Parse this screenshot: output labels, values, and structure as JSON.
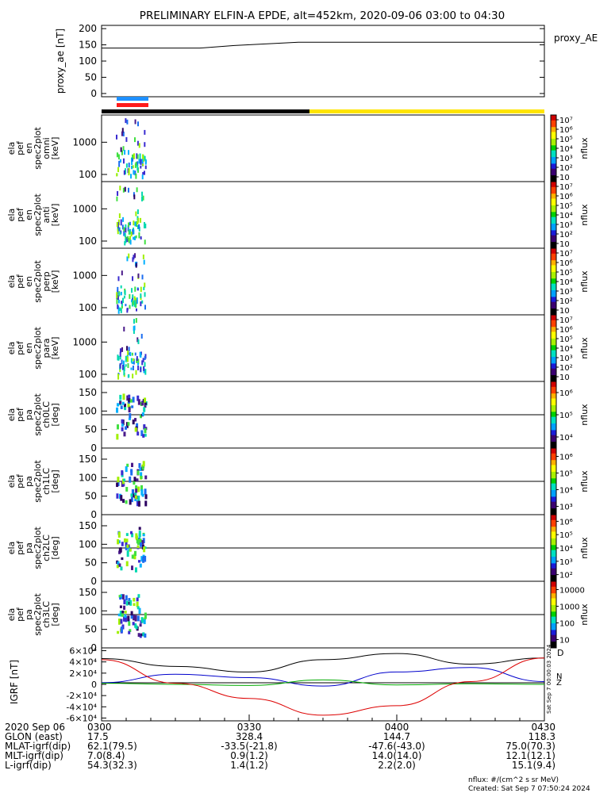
{
  "title": "PRELIMINARY ELFIN-A EPDE, alt=452km, 2020-09-06 03:00 to 04:30",
  "colors": {
    "proxy_line": "#000000",
    "bar_blue": "#1e90ff",
    "bar_red": "#ff1a1a",
    "bar_black": "#000000",
    "bar_yellow": "#ffe400",
    "bx": "#0000cc",
    "by": "#00aa00",
    "bz": "#dd0000",
    "btotal": "#000000"
  },
  "chart_data": [
    {
      "type": "line",
      "id": "proxy_ae",
      "ylabel": "proxy_ae [nT]",
      "legend": "proxy_AE",
      "ylim": [
        -10,
        210
      ],
      "yticks": [
        "0",
        "50",
        "100",
        "150",
        "200"
      ],
      "x": [
        "03:00",
        "03:20",
        "03:27",
        "03:40",
        "04:30"
      ],
      "values": [
        140,
        140,
        148,
        158,
        158
      ]
    },
    {
      "type": "heatmap",
      "id": "en_omni",
      "ylabel": [
        "ela",
        "pef",
        "en",
        "spec2plot",
        "omni",
        "[keV]"
      ],
      "yticks": [
        "100",
        "1000"
      ],
      "colorbar_label": "nflux",
      "colorbar_ticks": [
        "10",
        "10²",
        "10³",
        "10⁴",
        "10⁵",
        "10⁶",
        "10⁷"
      ]
    },
    {
      "type": "heatmap",
      "id": "en_anti",
      "ylabel": [
        "ela",
        "pef",
        "en",
        "spec2plot",
        "anti",
        "[keV]"
      ],
      "yticks": [
        "100",
        "1000"
      ],
      "colorbar_label": "nflux",
      "colorbar_ticks": [
        "10",
        "10²",
        "10³",
        "10⁴",
        "10⁵",
        "10⁶",
        "10⁷"
      ]
    },
    {
      "type": "heatmap",
      "id": "en_perp",
      "ylabel": [
        "ela",
        "pef",
        "en",
        "spec2plot",
        "perp",
        "[keV]"
      ],
      "yticks": [
        "100",
        "1000"
      ],
      "colorbar_label": "nflux",
      "colorbar_ticks": [
        "10",
        "10²",
        "10³",
        "10⁴",
        "10⁵",
        "10⁶",
        "10⁷"
      ]
    },
    {
      "type": "heatmap",
      "id": "en_para",
      "ylabel": [
        "ela",
        "pef",
        "en",
        "spec2plot",
        "para",
        "[keV]"
      ],
      "yticks": [
        "100",
        "1000"
      ],
      "colorbar_label": "nflux",
      "colorbar_ticks": [
        "10",
        "10²",
        "10³",
        "10⁴",
        "10⁵",
        "10⁶",
        "10⁷"
      ]
    },
    {
      "type": "heatmap",
      "id": "pa_ch0",
      "ylabel": [
        "ela",
        "pef",
        "pa",
        "spec2plot",
        "ch0LC",
        "[deg]"
      ],
      "yticks": [
        "0",
        "50",
        "100",
        "150"
      ],
      "reference_line": 90,
      "colorbar_label": "nflux",
      "colorbar_ticks": [
        "10⁴",
        "10⁵",
        "10⁶"
      ]
    },
    {
      "type": "heatmap",
      "id": "pa_ch1",
      "ylabel": [
        "ela",
        "pef",
        "pa",
        "spec2plot",
        "ch1LC",
        "[deg]"
      ],
      "yticks": [
        "0",
        "50",
        "100",
        "150"
      ],
      "reference_line": 90,
      "colorbar_label": "nflux",
      "colorbar_ticks": [
        "10³",
        "10⁴",
        "10⁵",
        "10⁶"
      ]
    },
    {
      "type": "heatmap",
      "id": "pa_ch2",
      "ylabel": [
        "ela",
        "pef",
        "pa",
        "spec2plot",
        "ch2LC",
        "[deg]"
      ],
      "yticks": [
        "0",
        "50",
        "100",
        "150"
      ],
      "reference_line": 90,
      "colorbar_label": "nflux",
      "colorbar_ticks": [
        "10²",
        "10³",
        "10⁴",
        "10⁵",
        "10⁶"
      ]
    },
    {
      "type": "heatmap",
      "id": "pa_ch3",
      "ylabel": [
        "ela",
        "pef",
        "pa",
        "spec2plot",
        "ch3LC",
        "[deg]"
      ],
      "yticks": [
        "0",
        "50",
        "100",
        "150"
      ],
      "reference_line": 90,
      "colorbar_label": "nflux",
      "colorbar_ticks": [
        "10",
        "100",
        "1000",
        "10000"
      ]
    },
    {
      "type": "line",
      "id": "igrf",
      "ylabel": "IGRF [nT]",
      "ylim": [
        -65000,
        65000
      ],
      "yticks": [
        "-6×10⁴",
        "-4×10⁴",
        "-2×10⁴",
        "0",
        "2×10⁴",
        "4×10⁴",
        "6×10⁴"
      ],
      "x_min": [
        0,
        15,
        30,
        45,
        60,
        75,
        90
      ],
      "series": [
        {
          "name": "",
          "color_key": "btotal",
          "values": [
            46000,
            32000,
            22000,
            44000,
            55000,
            36000,
            47000
          ]
        },
        {
          "name": "",
          "color_key": "bx",
          "values": [
            3000,
            18000,
            12000,
            -3000,
            22000,
            30000,
            5000
          ]
        },
        {
          "name": "",
          "color_key": "by",
          "values": [
            2000,
            0,
            -2000,
            8000,
            -1000,
            1000,
            0
          ]
        },
        {
          "name": "",
          "color_key": "bz",
          "values": [
            44000,
            2000,
            -25000,
            -55000,
            -38000,
            5000,
            47000
          ]
        }
      ],
      "side_letters": [
        "D",
        "N",
        "Z"
      ],
      "side_stamp": "Sat Sep  7 00:00:03 2024"
    }
  ],
  "time_axis": {
    "ticks": [
      "0300",
      "0330",
      "0400",
      "0430"
    ],
    "rows": [
      {
        "label": "2020 Sep 06",
        "values": [
          "0300",
          "0330",
          "0400",
          "0430"
        ]
      },
      {
        "label": "GLON (east)",
        "values": [
          "17.5",
          "328.4",
          "144.7",
          "118.3"
        ]
      },
      {
        "label": "MLAT-igrf(dip)",
        "values": [
          "62.1(79.5)",
          "-33.5(-21.8)",
          "-47.6(-43.0)",
          "75.0(70.3)"
        ]
      },
      {
        "label": "MLT-igrf(dip)",
        "values": [
          "7.0(8.4)",
          "0.9(1.2)",
          "14.0(14.0)",
          "12.1(12.1)"
        ]
      },
      {
        "label": "L-igrf(dip)",
        "values": [
          "54.3(32.3)",
          "1.4(1.2)",
          "2.2(2.0)",
          "15.1(9.4)"
        ]
      }
    ]
  },
  "footer": {
    "units": "nflux: #/(cm^2 s sr MeV)",
    "created": "Created: Sat Sep  7 07:50:24 2024"
  }
}
